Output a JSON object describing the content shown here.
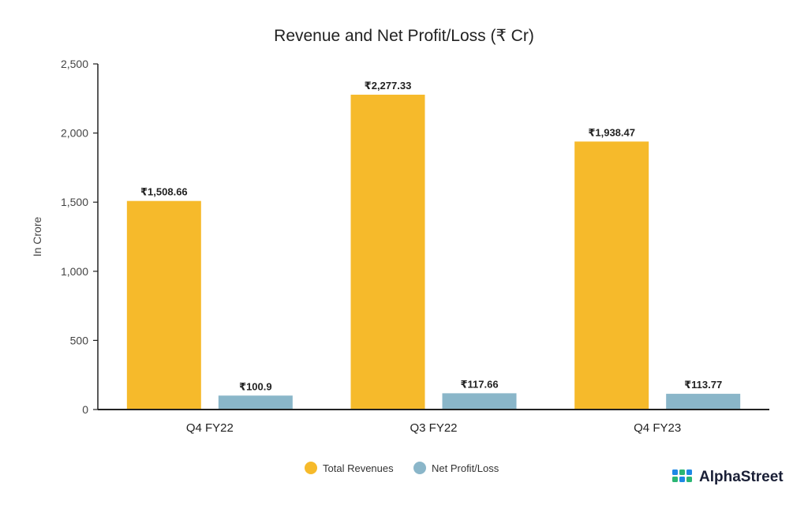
{
  "chart_data": {
    "type": "bar",
    "title": "Revenue and Net Profit/Loss (₹ Cr)",
    "ylabel": "In Crore",
    "xlabel": "",
    "ylim": [
      0,
      2500
    ],
    "yticks": [
      0,
      500,
      1000,
      1500,
      2000,
      2500
    ],
    "ytick_labels": [
      "0",
      "500",
      "1,000",
      "1,500",
      "2,000",
      "2,500"
    ],
    "categories": [
      "Q4 FY22",
      "Q3 FY22",
      "Q4 FY23"
    ],
    "series": [
      {
        "name": "Total Revenues",
        "color": "#F6BA2B",
        "values": [
          1508.66,
          2277.33,
          1938.47
        ],
        "labels": [
          "₹1,508.66",
          "₹2,277.33",
          "₹1,938.47"
        ]
      },
      {
        "name": "Net Profit/Loss",
        "color": "#8AB6C9",
        "values": [
          100.9,
          117.66,
          113.77
        ],
        "labels": [
          "₹100.9",
          "₹117.66",
          "₹113.77"
        ]
      }
    ],
    "grid": false,
    "legend": "bottom"
  },
  "brand": {
    "name": "AlphaStreet",
    "icon": "alphastreet-logo-icon",
    "icon_colors": [
      "#1E88E5",
      "#2BB673"
    ]
  }
}
